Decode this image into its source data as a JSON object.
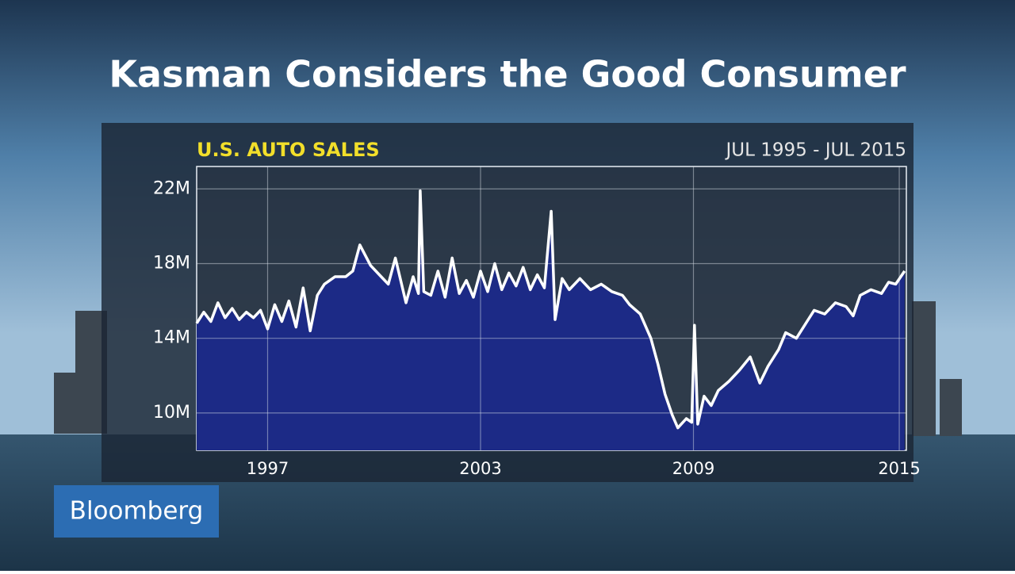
{
  "header": {
    "title": "Kasman Considers the Good Consumer"
  },
  "brand": "Bloomberg",
  "chart_data": {
    "type": "area",
    "title": "U.S. AUTO SALES",
    "subtitle": "JUL 1995 - JUL 2015",
    "x": [
      1995.5,
      1995.7,
      1995.9,
      1996.1,
      1996.3,
      1996.5,
      1996.7,
      1996.9,
      1997.1,
      1997.3,
      1997.5,
      1997.7,
      1997.9,
      1998.1,
      1998.3,
      1998.5,
      1998.7,
      1998.9,
      1999.1,
      1999.4,
      1999.7,
      1999.9,
      2000.1,
      2000.4,
      2000.7,
      2000.9,
      2001.1,
      2001.4,
      2001.6,
      2001.75,
      2001.8,
      2001.9,
      2002.1,
      2002.3,
      2002.5,
      2002.7,
      2002.9,
      2003.1,
      2003.3,
      2003.5,
      2003.7,
      2003.9,
      2004.1,
      2004.3,
      2004.5,
      2004.7,
      2004.9,
      2005.1,
      2005.3,
      2005.49,
      2005.6,
      2005.8,
      2006.0,
      2006.3,
      2006.6,
      2006.9,
      2007.2,
      2007.5,
      2007.7,
      2008.0,
      2008.3,
      2008.5,
      2008.7,
      2008.9,
      2009.06,
      2009.3,
      2009.45,
      2009.53,
      2009.62,
      2009.8,
      2010.0,
      2010.2,
      2010.5,
      2010.8,
      2011.1,
      2011.37,
      2011.6,
      2011.9,
      2012.1,
      2012.4,
      2012.7,
      2012.9,
      2013.2,
      2013.5,
      2013.8,
      2014.0,
      2014.2,
      2014.5,
      2014.8,
      2015.0,
      2015.2,
      2015.45
    ],
    "values": [
      14.8,
      15.4,
      14.9,
      15.9,
      15.1,
      15.6,
      15.0,
      15.4,
      15.1,
      15.5,
      14.5,
      15.8,
      14.9,
      16.0,
      14.6,
      16.7,
      14.4,
      16.3,
      16.9,
      17.3,
      17.3,
      17.6,
      19.0,
      17.9,
      17.3,
      16.9,
      18.3,
      15.9,
      17.3,
      16.4,
      21.9,
      16.5,
      16.3,
      17.6,
      16.2,
      18.3,
      16.4,
      17.1,
      16.2,
      17.6,
      16.5,
      18.0,
      16.6,
      17.5,
      16.8,
      17.8,
      16.6,
      17.4,
      16.7,
      20.8,
      15.0,
      17.2,
      16.6,
      17.2,
      16.6,
      16.9,
      16.5,
      16.3,
      15.8,
      15.3,
      14.0,
      12.6,
      11.0,
      9.9,
      9.2,
      9.7,
      9.5,
      14.7,
      9.4,
      10.9,
      10.4,
      11.2,
      11.7,
      12.3,
      13.0,
      11.6,
      12.5,
      13.4,
      14.3,
      14.0,
      14.9,
      15.5,
      15.3,
      15.9,
      15.7,
      15.2,
      16.3,
      16.6,
      16.4,
      17.0,
      16.9,
      17.6
    ],
    "color": "#1c2a86",
    "line_color": "#ffffff",
    "xlim": [
      1995.5,
      2015.5
    ],
    "xticks": [
      {
        "value": 1997.5,
        "label": "1997"
      },
      {
        "value": 2003.5,
        "label": "2003"
      },
      {
        "value": 2009.5,
        "label": "2009"
      },
      {
        "value": 2015.3,
        "label": "2015"
      }
    ],
    "ylim": [
      8,
      23.2
    ],
    "yticks": [
      {
        "value": 10,
        "label": "10M"
      },
      {
        "value": 14,
        "label": "14M"
      },
      {
        "value": 18,
        "label": "18M"
      },
      {
        "value": 22,
        "label": "22M"
      }
    ],
    "grid": true
  }
}
